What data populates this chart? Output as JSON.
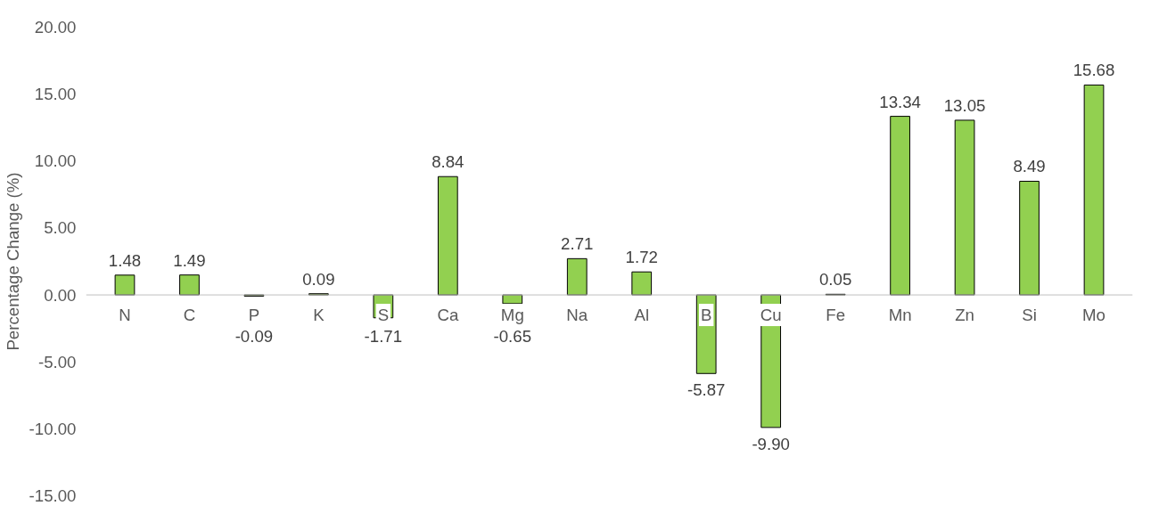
{
  "chart_data": {
    "type": "bar",
    "ylabel": "Percentage Change (%)",
    "categories": [
      "N",
      "C",
      "P",
      "K",
      "S",
      "Ca",
      "Mg",
      "Na",
      "Al",
      "B",
      "Cu",
      "Fe",
      "Mn",
      "Zn",
      "Si",
      "Mo"
    ],
    "values": [
      1.48,
      1.49,
      -0.09,
      0.09,
      -1.71,
      8.84,
      -0.65,
      2.71,
      1.72,
      -5.87,
      -9.9,
      0.05,
      13.34,
      13.05,
      8.49,
      15.68
    ],
    "value_labels": [
      "1.48",
      "1.49",
      "-0.09",
      "0.09",
      "-1.71",
      "8.84",
      "-0.65",
      "2.71",
      "1.72",
      "-5.87",
      "-9.90",
      "0.05",
      "13.34",
      "13.05",
      "8.49",
      "15.68"
    ],
    "color": "#92d050",
    "ylim": [
      -15,
      20
    ],
    "yticks": [
      {
        "value": -15,
        "label": "-15.00"
      },
      {
        "value": -10,
        "label": "-10.00"
      },
      {
        "value": -5,
        "label": "-5.00"
      },
      {
        "value": 0,
        "label": "0.00"
      },
      {
        "value": 5,
        "label": "5.00"
      },
      {
        "value": 10,
        "label": "10.00"
      },
      {
        "value": 15,
        "label": "15.00"
      },
      {
        "value": 20,
        "label": "20.00"
      }
    ],
    "grid": false
  }
}
